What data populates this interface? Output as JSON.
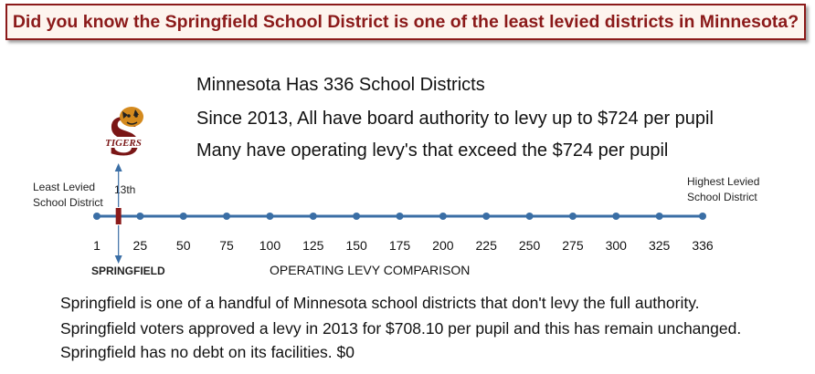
{
  "banner": {
    "text": "Did you know the Springfield School District is one of the least levied districts in Minnesota?"
  },
  "facts": [
    "Minnesota Has 336  School Districts",
    "Since 2013, All have board authority to levy up to $724 per pupil",
    "Many have operating levy's that exceed the $724 per pupil"
  ],
  "logo": {
    "letter": "S",
    "text": "TIGERS",
    "icon": "tiger-mascot-icon"
  },
  "timeline": {
    "left_label_line1": "Least Levied",
    "left_label_line2": "School District",
    "right_label_line1": "Highest Levied",
    "right_label_line2": "School District",
    "marker_rank_label": "13th",
    "marker_value": 13,
    "marker_name": "SPRINGFIELD",
    "axis_title": "OPERATING LEVY COMPARISON",
    "min": 1,
    "max": 336,
    "ticks": [
      "1",
      "25",
      "50",
      "75",
      "100",
      "125",
      "150",
      "175",
      "200",
      "225",
      "250",
      "275",
      "300",
      "325",
      "336"
    ]
  },
  "colors": {
    "banner_text": "#8b1a1a",
    "line": "#3a6ea5",
    "marker": "#8b1a1a"
  },
  "bottom_lines": [
    "Springfield is one of a handful of Minnesota school districts that don't levy the full authority.",
    "Springfield voters approved a levy in 2013 for $708.10 per pupil and this has remain unchanged.",
    "Springfield has no debt on its facilities. $0"
  ]
}
